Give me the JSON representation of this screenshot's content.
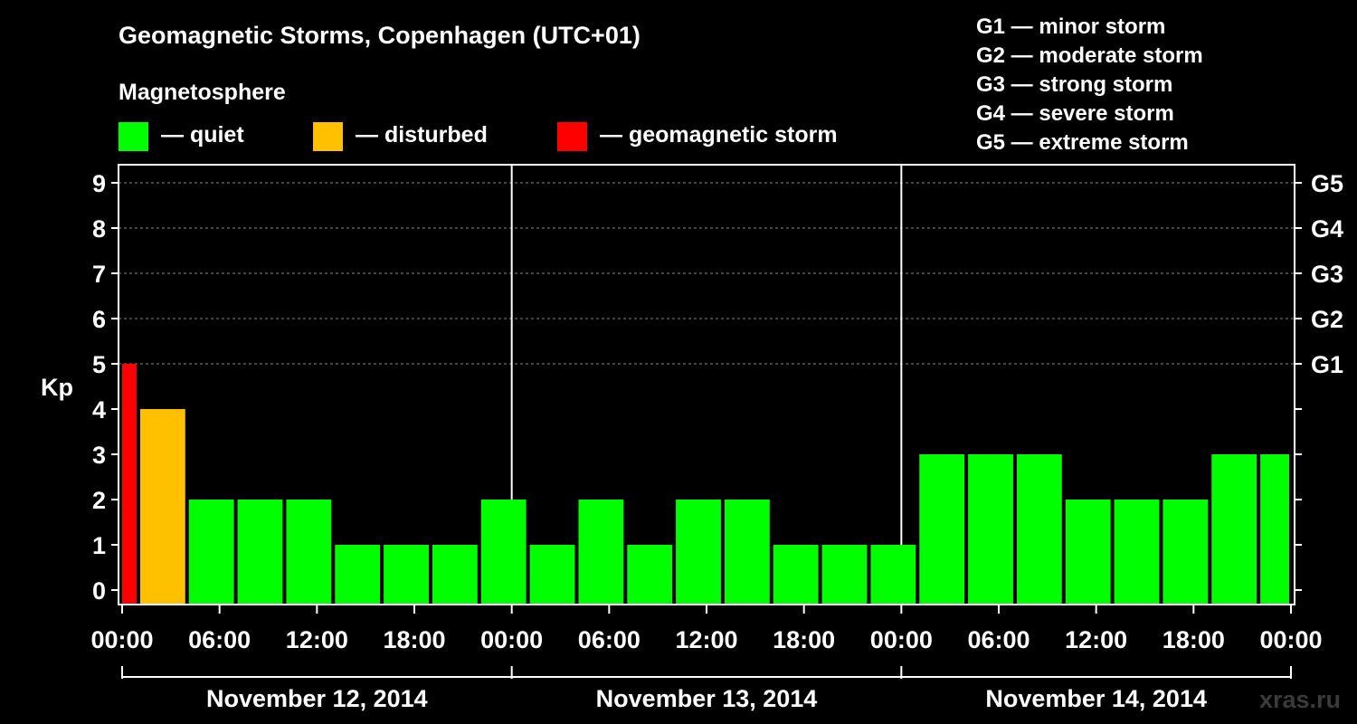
{
  "chart_data": {
    "type": "bar",
    "title": "Geomagnetic Storms, Copenhagen (UTC+01)",
    "ylabel": "Kp",
    "ylim": [
      0,
      9
    ],
    "y_ticks": [
      "0",
      "1",
      "2",
      "3",
      "4",
      "5",
      "6",
      "7",
      "8",
      "9"
    ],
    "x_tick_labels": [
      "00:00",
      "06:00",
      "12:00",
      "18:00",
      "00:00",
      "06:00",
      "12:00",
      "18:00",
      "00:00",
      "06:00",
      "12:00",
      "18:00",
      "00:00"
    ],
    "days": [
      "November 12, 2014",
      "November 13, 2014",
      "November 14, 2014"
    ],
    "g_scale_labels": [
      {
        "kp": 5,
        "label": "G1"
      },
      {
        "kp": 6,
        "label": "G2"
      },
      {
        "kp": 7,
        "label": "G3"
      },
      {
        "kp": 8,
        "label": "G4"
      },
      {
        "kp": 9,
        "label": "G5"
      }
    ],
    "legend": {
      "heading": "Magnetosphere",
      "items": [
        {
          "label": "— quiet",
          "color": "#00ff00"
        },
        {
          "label": "— disturbed",
          "color": "#ffc000"
        },
        {
          "label": "— geomagnetic storm",
          "color": "#ff0000"
        }
      ]
    },
    "storm_scale": [
      "G1 — minor storm",
      "G2 — moderate storm",
      "G3 — strong storm",
      "G4 — severe storm",
      "G5 — extreme storm"
    ],
    "colors": {
      "quiet": "#00ff00",
      "disturbed": "#ffc000",
      "storm": "#ff0000"
    },
    "bars": [
      {
        "start_hour": 0,
        "end_hour": 1,
        "kp": 5,
        "status": "storm"
      },
      {
        "start_hour": 1,
        "end_hour": 4,
        "kp": 4,
        "status": "disturbed"
      },
      {
        "start_hour": 4,
        "end_hour": 7,
        "kp": 2,
        "status": "quiet"
      },
      {
        "start_hour": 7,
        "end_hour": 10,
        "kp": 2,
        "status": "quiet"
      },
      {
        "start_hour": 10,
        "end_hour": 13,
        "kp": 2,
        "status": "quiet"
      },
      {
        "start_hour": 13,
        "end_hour": 16,
        "kp": 1,
        "status": "quiet"
      },
      {
        "start_hour": 16,
        "end_hour": 19,
        "kp": 1,
        "status": "quiet"
      },
      {
        "start_hour": 19,
        "end_hour": 22,
        "kp": 1,
        "status": "quiet"
      },
      {
        "start_hour": 22,
        "end_hour": 25,
        "kp": 2,
        "status": "quiet"
      },
      {
        "start_hour": 25,
        "end_hour": 28,
        "kp": 1,
        "status": "quiet"
      },
      {
        "start_hour": 28,
        "end_hour": 31,
        "kp": 2,
        "status": "quiet"
      },
      {
        "start_hour": 31,
        "end_hour": 34,
        "kp": 1,
        "status": "quiet"
      },
      {
        "start_hour": 34,
        "end_hour": 37,
        "kp": 2,
        "status": "quiet"
      },
      {
        "start_hour": 37,
        "end_hour": 40,
        "kp": 2,
        "status": "quiet"
      },
      {
        "start_hour": 40,
        "end_hour": 43,
        "kp": 1,
        "status": "quiet"
      },
      {
        "start_hour": 43,
        "end_hour": 46,
        "kp": 1,
        "status": "quiet"
      },
      {
        "start_hour": 46,
        "end_hour": 49,
        "kp": 1,
        "status": "quiet"
      },
      {
        "start_hour": 49,
        "end_hour": 52,
        "kp": 3,
        "status": "quiet"
      },
      {
        "start_hour": 52,
        "end_hour": 55,
        "kp": 3,
        "status": "quiet"
      },
      {
        "start_hour": 55,
        "end_hour": 58,
        "kp": 3,
        "status": "quiet"
      },
      {
        "start_hour": 58,
        "end_hour": 61,
        "kp": 2,
        "status": "quiet"
      },
      {
        "start_hour": 61,
        "end_hour": 64,
        "kp": 2,
        "status": "quiet"
      },
      {
        "start_hour": 64,
        "end_hour": 67,
        "kp": 2,
        "status": "quiet"
      },
      {
        "start_hour": 67,
        "end_hour": 70,
        "kp": 3,
        "status": "quiet"
      },
      {
        "start_hour": 70,
        "end_hour": 72,
        "kp": 3,
        "status": "quiet"
      }
    ],
    "grid": true,
    "watermark": "xras.ru"
  }
}
